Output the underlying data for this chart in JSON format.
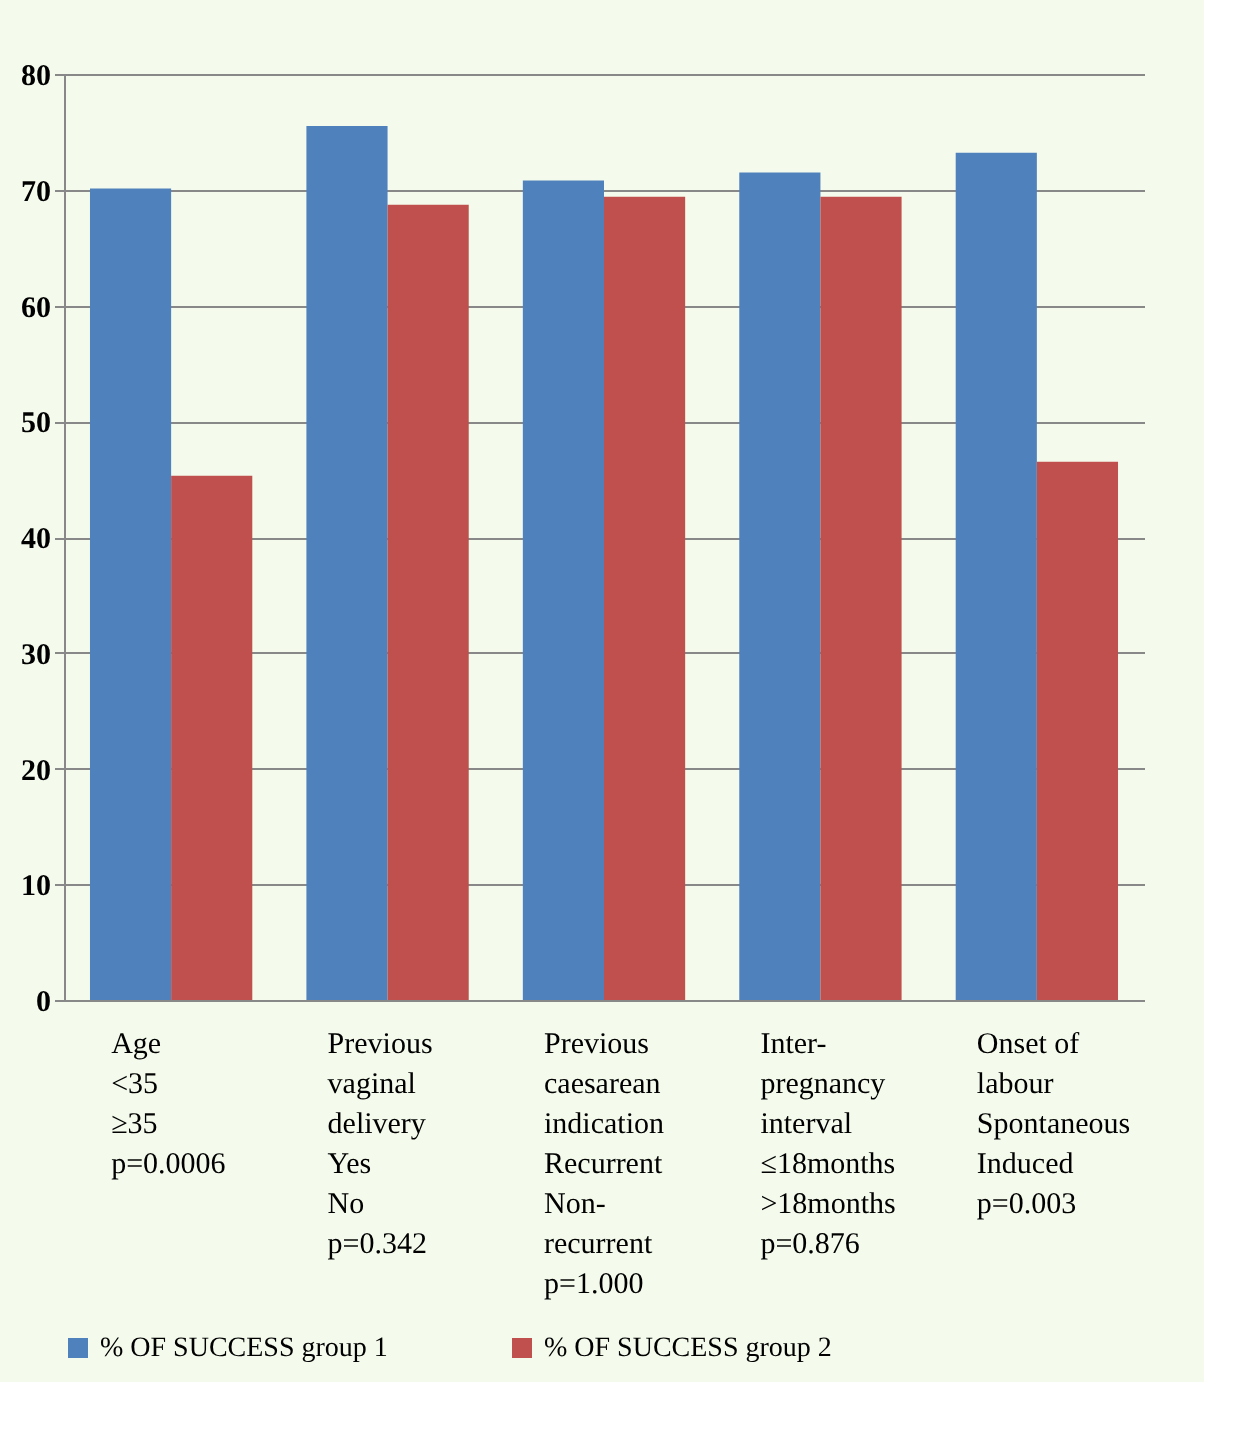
{
  "chart_data": {
    "type": "bar",
    "categories": [
      "Age\n\n\n<35\n≥35\np=0.0006",
      "Previous\nvaginal\ndelivery\nYes\nNo\np=0.342",
      "Previous\ncaesarean\nindication\nRecurrent\nNon-\nrecurrent\np=1.000",
      "Inter-\npregnancy\ninterval\n≤18months\n>18months\np=0.876",
      "Onset of\nlabour\nSpontaneous\nInduced\np=0.003"
    ],
    "series": [
      {
        "name": "% OF SUCCESS group 1",
        "color": "#4f81bd",
        "values": [
          70.1,
          75.5,
          70.8,
          71.5,
          73.2
        ]
      },
      {
        "name": "% OF SUCCESS group 2",
        "color": "#c0504d",
        "values": [
          45.3,
          68.7,
          69.4,
          69.4,
          46.5
        ]
      }
    ],
    "ylim": [
      0,
      80
    ],
    "yticks": [
      0,
      10,
      20,
      30,
      40,
      50,
      60,
      70,
      80
    ],
    "grid": "y",
    "legend": "bottom"
  }
}
